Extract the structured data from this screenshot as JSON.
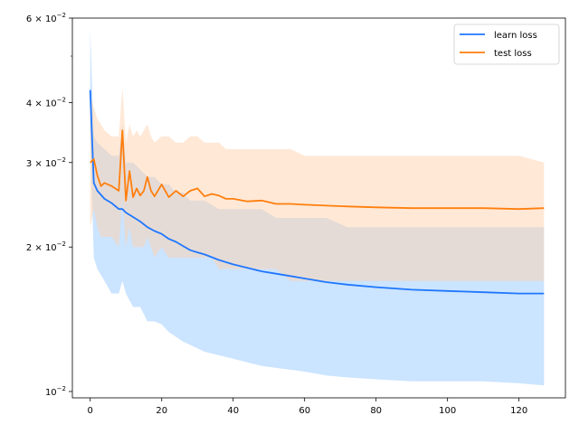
{
  "chart_data": {
    "type": "line",
    "scale": {
      "y": "log"
    },
    "xlim": [
      -5,
      133
    ],
    "ylim": [
      0.0097,
      0.06
    ],
    "x_ticks": [
      0,
      20,
      40,
      60,
      80,
      100,
      120
    ],
    "y_major_ticks": [
      {
        "value": 0.01,
        "base": "10",
        "exp": "−2",
        "mantissa": ""
      },
      {
        "value": 0.02,
        "base": "10",
        "exp": "−2",
        "mantissa": "2 × "
      },
      {
        "value": 0.03,
        "base": "10",
        "exp": "−2",
        "mantissa": "3 × "
      },
      {
        "value": 0.04,
        "base": "10",
        "exp": "−2",
        "mantissa": "4 × "
      },
      {
        "value": 0.06,
        "base": "10",
        "exp": "−2",
        "mantissa": "6 × "
      }
    ],
    "y_minor_ticks": [
      0.05
    ],
    "legend": {
      "position": "top-right",
      "entries": [
        "learn loss",
        "test loss"
      ]
    },
    "grid": false,
    "series": [
      {
        "name": "learn loss",
        "color": "#1f77ff",
        "band_color": "#8cc3ff",
        "x": [
          0,
          1,
          2,
          4,
          6,
          8,
          9,
          10,
          12,
          14,
          16,
          18,
          20,
          22,
          24,
          26,
          28,
          30,
          32,
          36,
          40,
          44,
          48,
          52,
          56,
          60,
          66,
          72,
          80,
          90,
          100,
          110,
          120,
          127
        ],
        "mean": [
          0.0425,
          0.0272,
          0.0262,
          0.0252,
          0.0247,
          0.024,
          0.024,
          0.0236,
          0.0231,
          0.0226,
          0.022,
          0.0216,
          0.0213,
          0.0208,
          0.0205,
          0.0201,
          0.0197,
          0.0195,
          0.0193,
          0.0188,
          0.0184,
          0.0181,
          0.0178,
          0.0176,
          0.0174,
          0.0172,
          0.0169,
          0.0167,
          0.0165,
          0.0163,
          0.0162,
          0.0161,
          0.016,
          0.016
        ],
        "upper": [
          0.057,
          0.034,
          0.033,
          0.032,
          0.031,
          0.031,
          0.036,
          0.03,
          0.03,
          0.029,
          0.028,
          0.028,
          0.027,
          0.027,
          0.026,
          0.026,
          0.025,
          0.025,
          0.025,
          0.024,
          0.024,
          0.024,
          0.024,
          0.023,
          0.023,
          0.023,
          0.023,
          0.022,
          0.022,
          0.022,
          0.022,
          0.022,
          0.022,
          0.022
        ],
        "lower": [
          0.034,
          0.019,
          0.018,
          0.017,
          0.016,
          0.016,
          0.017,
          0.016,
          0.015,
          0.015,
          0.014,
          0.014,
          0.0138,
          0.0133,
          0.013,
          0.0127,
          0.0125,
          0.0123,
          0.0121,
          0.0119,
          0.0117,
          0.0115,
          0.0113,
          0.0112,
          0.0111,
          0.011,
          0.0108,
          0.0107,
          0.0106,
          0.0105,
          0.0105,
          0.0105,
          0.0104,
          0.0103
        ]
      },
      {
        "name": "test loss",
        "color": "#ff7f0e",
        "band_color": "#ffd2ad",
        "x": [
          0,
          1,
          2,
          3,
          4,
          6,
          8,
          9,
          10,
          11,
          12,
          13,
          14,
          15,
          16,
          17,
          18,
          20,
          22,
          24,
          26,
          28,
          30,
          32,
          34,
          36,
          38,
          40,
          44,
          48,
          52,
          56,
          60,
          66,
          72,
          80,
          90,
          100,
          110,
          120,
          127
        ],
        "mean": [
          0.03,
          0.0305,
          0.0282,
          0.0268,
          0.0272,
          0.0268,
          0.0262,
          0.035,
          0.025,
          0.0288,
          0.0254,
          0.0265,
          0.0256,
          0.0262,
          0.028,
          0.0262,
          0.0255,
          0.027,
          0.0254,
          0.0262,
          0.0255,
          0.0262,
          0.0265,
          0.0255,
          0.0258,
          0.0256,
          0.0252,
          0.0252,
          0.0249,
          0.025,
          0.0246,
          0.0246,
          0.0245,
          0.0244,
          0.0243,
          0.0242,
          0.0241,
          0.0241,
          0.0241,
          0.024,
          0.0241
        ],
        "upper": [
          0.042,
          0.039,
          0.037,
          0.036,
          0.035,
          0.034,
          0.034,
          0.043,
          0.033,
          0.036,
          0.034,
          0.035,
          0.034,
          0.035,
          0.036,
          0.034,
          0.033,
          0.034,
          0.034,
          0.033,
          0.033,
          0.034,
          0.034,
          0.033,
          0.033,
          0.033,
          0.032,
          0.032,
          0.032,
          0.032,
          0.032,
          0.032,
          0.031,
          0.031,
          0.031,
          0.031,
          0.031,
          0.031,
          0.031,
          0.031,
          0.03
        ],
        "lower": [
          0.022,
          0.024,
          0.022,
          0.021,
          0.021,
          0.021,
          0.02,
          0.025,
          0.02,
          0.022,
          0.02,
          0.02,
          0.02,
          0.02,
          0.021,
          0.02,
          0.019,
          0.02,
          0.019,
          0.019,
          0.019,
          0.019,
          0.019,
          0.019,
          0.019,
          0.018,
          0.018,
          0.018,
          0.018,
          0.018,
          0.018,
          0.017,
          0.017,
          0.017,
          0.017,
          0.017,
          0.017,
          0.017,
          0.017,
          0.017,
          0.017
        ]
      }
    ]
  }
}
